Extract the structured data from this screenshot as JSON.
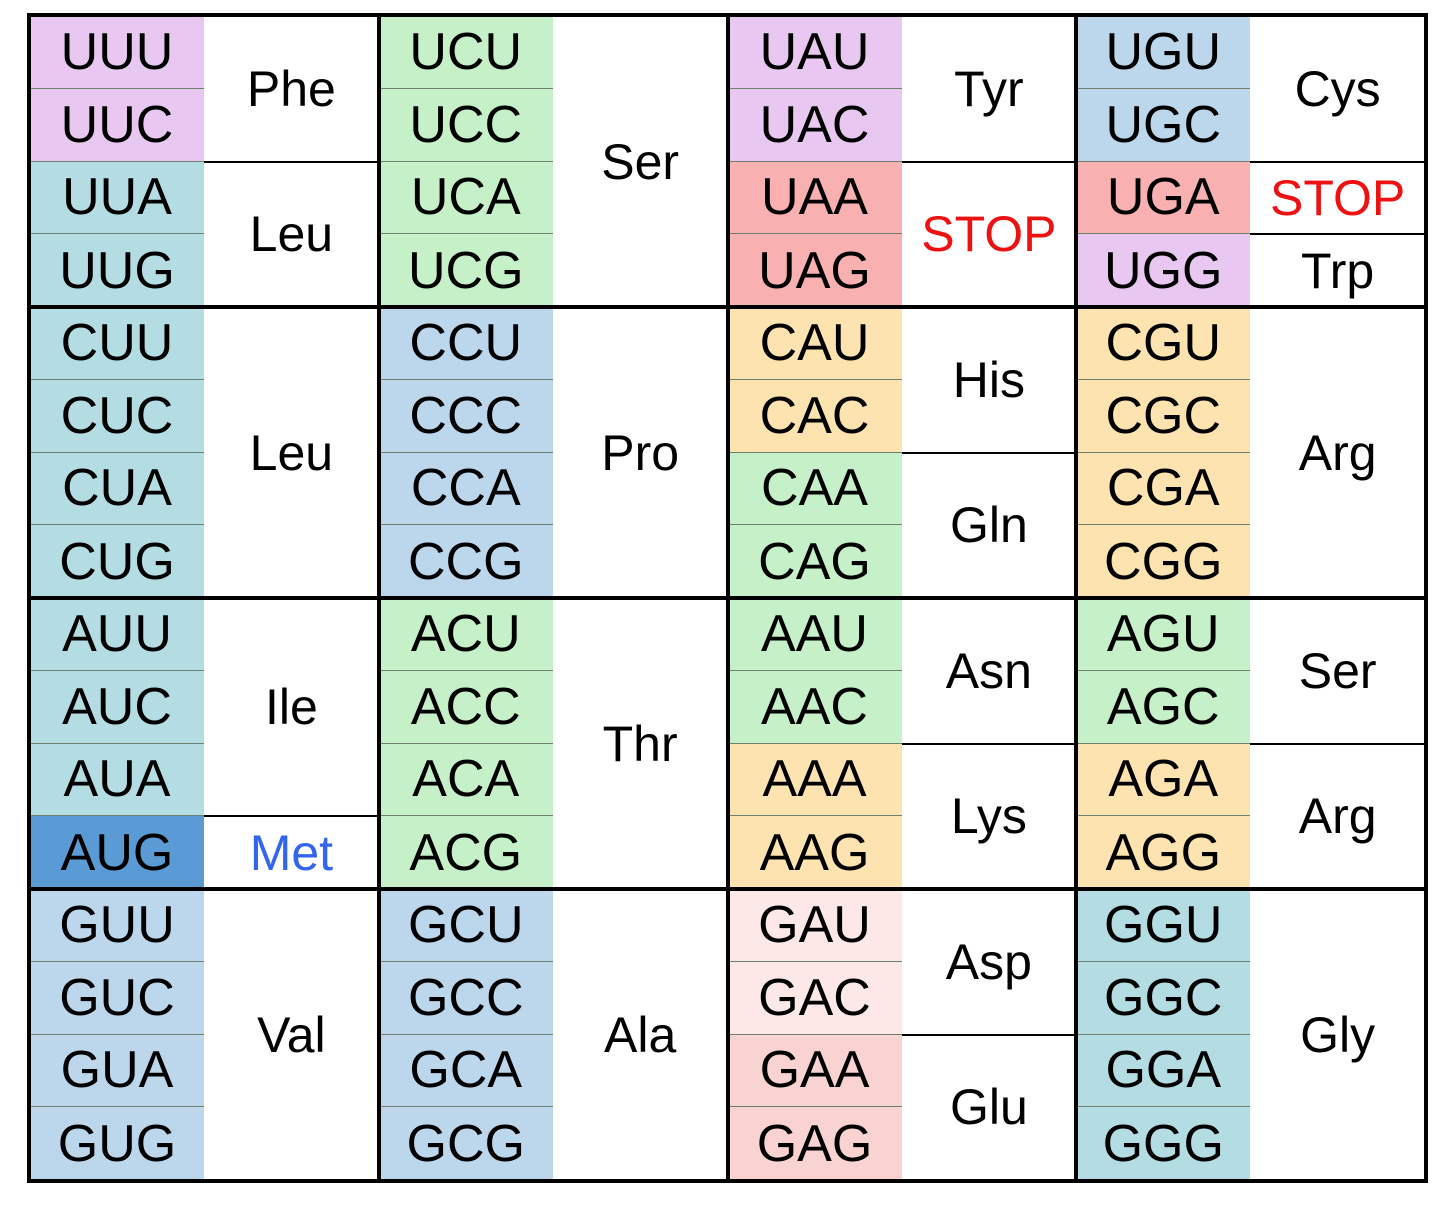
{
  "colors": {
    "purple": "#e8c8f0",
    "teal": "#b3dde3",
    "green": "#c5f0c8",
    "blue": "#bcd6ec",
    "orange": "#fde3b0",
    "red": "#f8b0b0",
    "pink_light": "#fde8e8",
    "pink": "#f9d2d2",
    "start": "#5b9bd5",
    "stop_text": "#ee1111",
    "met_text": "#3366ee"
  },
  "columns": [
    {
      "codons": [
        {
          "text": "UUU",
          "color": "purple"
        },
        {
          "text": "UUC",
          "color": "purple"
        },
        {
          "text": "UUA",
          "color": "teal"
        },
        {
          "text": "UUG",
          "color": "teal"
        },
        {
          "text": "CUU",
          "color": "teal"
        },
        {
          "text": "CUC",
          "color": "teal"
        },
        {
          "text": "CUA",
          "color": "teal"
        },
        {
          "text": "CUG",
          "color": "teal"
        },
        {
          "text": "AUU",
          "color": "teal"
        },
        {
          "text": "AUC",
          "color": "teal"
        },
        {
          "text": "AUA",
          "color": "teal"
        },
        {
          "text": "AUG",
          "color": "start"
        },
        {
          "text": "GUU",
          "color": "blue"
        },
        {
          "text": "GUC",
          "color": "blue"
        },
        {
          "text": "GUA",
          "color": "blue"
        },
        {
          "text": "GUG",
          "color": "blue"
        }
      ],
      "amino_acids": [
        {
          "label": "Phe",
          "start": 0,
          "span": 2
        },
        {
          "label": "Leu",
          "start": 2,
          "span": 2
        },
        {
          "label": "Leu",
          "start": 4,
          "span": 4
        },
        {
          "label": "Ile",
          "start": 8,
          "span": 3
        },
        {
          "label": "Met",
          "start": 11,
          "span": 1,
          "text_color": "met_text"
        },
        {
          "label": "Val",
          "start": 12,
          "span": 4
        }
      ]
    },
    {
      "codons": [
        {
          "text": "UCU",
          "color": "green"
        },
        {
          "text": "UCC",
          "color": "green"
        },
        {
          "text": "UCA",
          "color": "green"
        },
        {
          "text": "UCG",
          "color": "green"
        },
        {
          "text": "CCU",
          "color": "blue"
        },
        {
          "text": "CCC",
          "color": "blue"
        },
        {
          "text": "CCA",
          "color": "blue"
        },
        {
          "text": "CCG",
          "color": "blue"
        },
        {
          "text": "ACU",
          "color": "green"
        },
        {
          "text": "ACC",
          "color": "green"
        },
        {
          "text": "ACA",
          "color": "green"
        },
        {
          "text": "ACG",
          "color": "green"
        },
        {
          "text": "GCU",
          "color": "blue"
        },
        {
          "text": "GCC",
          "color": "blue"
        },
        {
          "text": "GCA",
          "color": "blue"
        },
        {
          "text": "GCG",
          "color": "blue"
        }
      ],
      "amino_acids": [
        {
          "label": "Ser",
          "start": 0,
          "span": 4
        },
        {
          "label": "Pro",
          "start": 4,
          "span": 4
        },
        {
          "label": "Thr",
          "start": 8,
          "span": 4
        },
        {
          "label": "Ala",
          "start": 12,
          "span": 4
        }
      ]
    },
    {
      "codons": [
        {
          "text": "UAU",
          "color": "purple"
        },
        {
          "text": "UAC",
          "color": "purple"
        },
        {
          "text": "UAA",
          "color": "red"
        },
        {
          "text": "UAG",
          "color": "red"
        },
        {
          "text": "CAU",
          "color": "orange"
        },
        {
          "text": "CAC",
          "color": "orange"
        },
        {
          "text": "CAA",
          "color": "green"
        },
        {
          "text": "CAG",
          "color": "green"
        },
        {
          "text": "AAU",
          "color": "green"
        },
        {
          "text": "AAC",
          "color": "green"
        },
        {
          "text": "AAA",
          "color": "orange"
        },
        {
          "text": "AAG",
          "color": "orange"
        },
        {
          "text": "GAU",
          "color": "pink_light"
        },
        {
          "text": "GAC",
          "color": "pink_light"
        },
        {
          "text": "GAA",
          "color": "pink"
        },
        {
          "text": "GAG",
          "color": "pink"
        }
      ],
      "amino_acids": [
        {
          "label": "Tyr",
          "start": 0,
          "span": 2
        },
        {
          "label": "STOP",
          "start": 2,
          "span": 2,
          "text_color": "stop_text"
        },
        {
          "label": "His",
          "start": 4,
          "span": 2
        },
        {
          "label": "Gln",
          "start": 6,
          "span": 2
        },
        {
          "label": "Asn",
          "start": 8,
          "span": 2
        },
        {
          "label": "Lys",
          "start": 10,
          "span": 2
        },
        {
          "label": "Asp",
          "start": 12,
          "span": 2
        },
        {
          "label": "Glu",
          "start": 14,
          "span": 2
        }
      ]
    },
    {
      "codons": [
        {
          "text": "UGU",
          "color": "blue"
        },
        {
          "text": "UGC",
          "color": "blue"
        },
        {
          "text": "UGA",
          "color": "red"
        },
        {
          "text": "UGG",
          "color": "purple"
        },
        {
          "text": "CGU",
          "color": "orange"
        },
        {
          "text": "CGC",
          "color": "orange"
        },
        {
          "text": "CGA",
          "color": "orange"
        },
        {
          "text": "CGG",
          "color": "orange"
        },
        {
          "text": "AGU",
          "color": "green"
        },
        {
          "text": "AGC",
          "color": "green"
        },
        {
          "text": "AGA",
          "color": "orange"
        },
        {
          "text": "AGG",
          "color": "orange"
        },
        {
          "text": "GGU",
          "color": "teal"
        },
        {
          "text": "GGC",
          "color": "teal"
        },
        {
          "text": "GGA",
          "color": "teal"
        },
        {
          "text": "GGG",
          "color": "teal"
        }
      ],
      "amino_acids": [
        {
          "label": "Cys",
          "start": 0,
          "span": 2
        },
        {
          "label": "STOP",
          "start": 2,
          "span": 1,
          "text_color": "stop_text"
        },
        {
          "label": "Trp",
          "start": 3,
          "span": 1
        },
        {
          "label": "Arg",
          "start": 4,
          "span": 4
        },
        {
          "label": "Ser",
          "start": 8,
          "span": 2
        },
        {
          "label": "Arg",
          "start": 10,
          "span": 2
        },
        {
          "label": "Gly",
          "start": 12,
          "span": 4
        }
      ]
    }
  ]
}
